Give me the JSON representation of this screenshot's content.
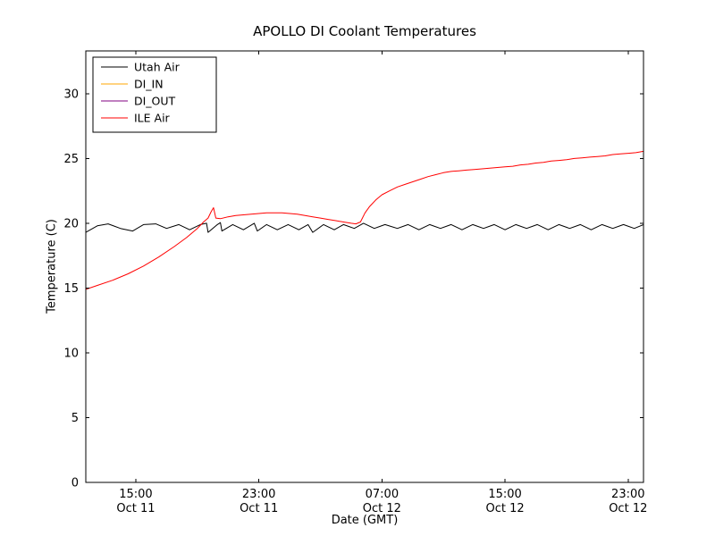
{
  "chart_data": {
    "type": "line",
    "title": "APOLLO DI Coolant Temperatures",
    "xlabel": "Date (GMT)",
    "ylabel": "Temperature (C)",
    "x_unit": "hours since Oct 11 00:00 GMT",
    "xlim": [
      11.75,
      48.0
    ],
    "ylim": [
      0,
      33.3
    ],
    "grid": false,
    "legend_position": "upper left",
    "x_ticks": [
      {
        "value": 15,
        "label": "15:00",
        "sublabel": "Oct 11"
      },
      {
        "value": 23,
        "label": "23:00",
        "sublabel": "Oct 11"
      },
      {
        "value": 31,
        "label": "07:00",
        "sublabel": "Oct 12"
      },
      {
        "value": 39,
        "label": "15:00",
        "sublabel": "Oct 12"
      },
      {
        "value": 47,
        "label": "23:00",
        "sublabel": "Oct 12"
      }
    ],
    "y_ticks": [
      0,
      5,
      10,
      15,
      20,
      25,
      30
    ],
    "series": [
      {
        "name": "Utah Air",
        "color": "#000000",
        "points": [
          [
            11.75,
            19.3
          ],
          [
            12.5,
            19.8
          ],
          [
            13.2,
            19.95
          ],
          [
            14.0,
            19.6
          ],
          [
            14.8,
            19.4
          ],
          [
            15.5,
            19.9
          ],
          [
            16.3,
            19.95
          ],
          [
            17.0,
            19.6
          ],
          [
            17.8,
            19.9
          ],
          [
            18.5,
            19.5
          ],
          [
            19.2,
            19.9
          ],
          [
            19.6,
            20.0
          ],
          [
            19.7,
            19.3
          ],
          [
            20.3,
            19.9
          ],
          [
            20.5,
            20.05
          ],
          [
            20.6,
            19.4
          ],
          [
            21.3,
            19.9
          ],
          [
            22.0,
            19.5
          ],
          [
            22.7,
            20.0
          ],
          [
            22.9,
            19.4
          ],
          [
            23.5,
            19.9
          ],
          [
            24.2,
            19.5
          ],
          [
            24.9,
            19.9
          ],
          [
            25.6,
            19.5
          ],
          [
            26.2,
            19.9
          ],
          [
            26.5,
            19.3
          ],
          [
            27.2,
            19.9
          ],
          [
            27.9,
            19.5
          ],
          [
            28.5,
            19.9
          ],
          [
            29.2,
            19.6
          ],
          [
            29.8,
            20.0
          ],
          [
            30.5,
            19.6
          ],
          [
            31.2,
            19.9
          ],
          [
            32.0,
            19.6
          ],
          [
            32.7,
            19.9
          ],
          [
            33.4,
            19.5
          ],
          [
            34.1,
            19.9
          ],
          [
            34.8,
            19.6
          ],
          [
            35.5,
            19.9
          ],
          [
            36.2,
            19.5
          ],
          [
            36.9,
            19.9
          ],
          [
            37.6,
            19.6
          ],
          [
            38.3,
            19.9
          ],
          [
            39.0,
            19.5
          ],
          [
            39.7,
            19.9
          ],
          [
            40.4,
            19.6
          ],
          [
            41.1,
            19.9
          ],
          [
            41.8,
            19.5
          ],
          [
            42.5,
            19.9
          ],
          [
            43.2,
            19.6
          ],
          [
            43.9,
            19.9
          ],
          [
            44.6,
            19.5
          ],
          [
            45.3,
            19.9
          ],
          [
            46.0,
            19.6
          ],
          [
            46.7,
            19.9
          ],
          [
            47.4,
            19.6
          ],
          [
            48.0,
            19.9
          ]
        ]
      },
      {
        "name": "DI_IN",
        "color": "#ffa500",
        "points": []
      },
      {
        "name": "DI_OUT",
        "color": "#800080",
        "points": []
      },
      {
        "name": "ILE Air",
        "color": "#ff0000",
        "points": [
          [
            11.75,
            14.9
          ],
          [
            12.5,
            15.2
          ],
          [
            13.5,
            15.6
          ],
          [
            14.5,
            16.1
          ],
          [
            15.5,
            16.7
          ],
          [
            16.5,
            17.4
          ],
          [
            17.5,
            18.2
          ],
          [
            18.3,
            18.9
          ],
          [
            19.0,
            19.6
          ],
          [
            19.4,
            20.1
          ],
          [
            19.7,
            20.4
          ],
          [
            19.9,
            20.9
          ],
          [
            20.05,
            21.2
          ],
          [
            20.2,
            20.4
          ],
          [
            20.5,
            20.35
          ],
          [
            21.0,
            20.5
          ],
          [
            21.5,
            20.6
          ],
          [
            22.0,
            20.65
          ],
          [
            22.5,
            20.7
          ],
          [
            23.0,
            20.75
          ],
          [
            23.5,
            20.8
          ],
          [
            24.0,
            20.8
          ],
          [
            24.5,
            20.8
          ],
          [
            25.0,
            20.75
          ],
          [
            25.5,
            20.7
          ],
          [
            26.0,
            20.6
          ],
          [
            26.5,
            20.5
          ],
          [
            27.0,
            20.4
          ],
          [
            27.5,
            20.3
          ],
          [
            28.0,
            20.2
          ],
          [
            28.5,
            20.1
          ],
          [
            29.0,
            20.0
          ],
          [
            29.3,
            19.95
          ],
          [
            29.6,
            20.1
          ],
          [
            29.9,
            20.8
          ],
          [
            30.2,
            21.3
          ],
          [
            30.6,
            21.8
          ],
          [
            31.0,
            22.2
          ],
          [
            31.5,
            22.5
          ],
          [
            32.0,
            22.8
          ],
          [
            32.5,
            23.0
          ],
          [
            33.0,
            23.2
          ],
          [
            33.5,
            23.4
          ],
          [
            34.0,
            23.6
          ],
          [
            34.5,
            23.75
          ],
          [
            35.0,
            23.9
          ],
          [
            35.5,
            24.0
          ],
          [
            36.0,
            24.05
          ],
          [
            36.5,
            24.1
          ],
          [
            37.0,
            24.15
          ],
          [
            37.5,
            24.2
          ],
          [
            38.0,
            24.25
          ],
          [
            38.5,
            24.3
          ],
          [
            39.0,
            24.35
          ],
          [
            39.5,
            24.4
          ],
          [
            40.0,
            24.5
          ],
          [
            40.5,
            24.55
          ],
          [
            41.0,
            24.65
          ],
          [
            41.5,
            24.7
          ],
          [
            42.0,
            24.8
          ],
          [
            42.5,
            24.85
          ],
          [
            43.0,
            24.9
          ],
          [
            43.5,
            25.0
          ],
          [
            44.0,
            25.05
          ],
          [
            44.5,
            25.1
          ],
          [
            45.0,
            25.15
          ],
          [
            45.5,
            25.2
          ],
          [
            46.0,
            25.3
          ],
          [
            46.5,
            25.35
          ],
          [
            47.0,
            25.4
          ],
          [
            47.5,
            25.45
          ],
          [
            48.0,
            25.55
          ]
        ]
      }
    ]
  }
}
